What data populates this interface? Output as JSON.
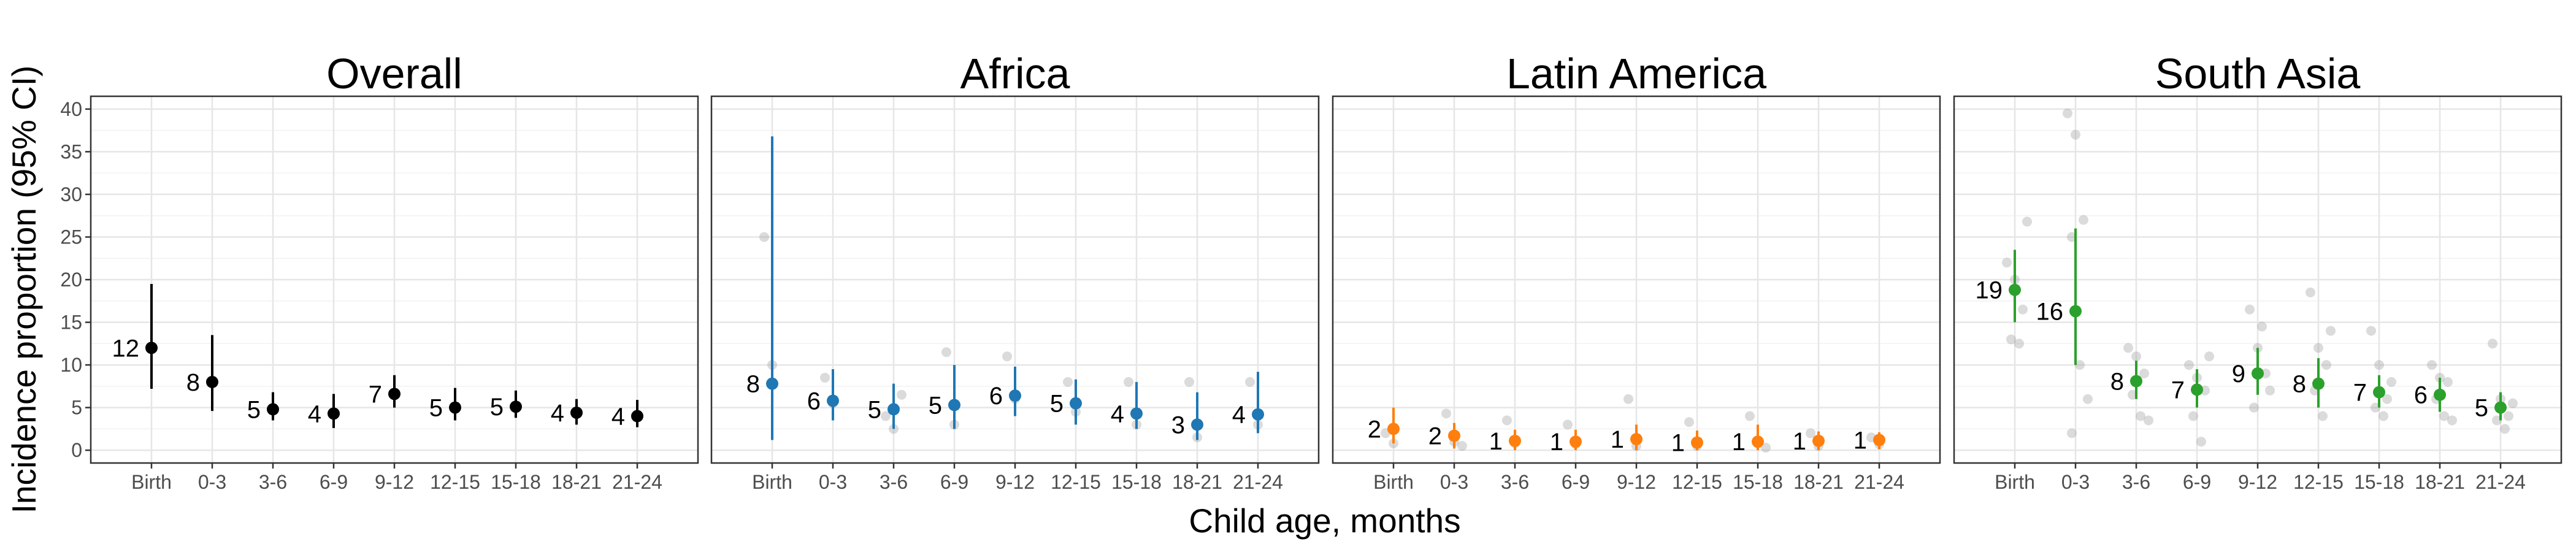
{
  "chart_data": {
    "type": "scatter",
    "xlabel": "Child age, months",
    "ylabel": "Incidence proportion (95% CI)",
    "ylim": [
      -1.5,
      41.5
    ],
    "yticks": [
      0,
      5,
      10,
      15,
      20,
      25,
      30,
      35,
      40
    ],
    "categories": [
      "Birth",
      "0-3",
      "3-6",
      "6-9",
      "9-12",
      "12-15",
      "15-18",
      "18-21",
      "21-24"
    ],
    "grid": true,
    "panels": [
      {
        "title": "Overall",
        "color": "#000000",
        "estimates": [
          12,
          8,
          5,
          4,
          7,
          5,
          5,
          4,
          4
        ],
        "y": [
          12.0,
          8.0,
          4.8,
          4.3,
          6.6,
          5.0,
          5.1,
          4.4,
          4.0
        ],
        "ci_low": [
          7.2,
          4.6,
          3.5,
          2.6,
          5.0,
          3.5,
          3.8,
          3.0,
          2.7
        ],
        "ci_high": [
          19.5,
          13.5,
          6.8,
          6.6,
          8.8,
          7.3,
          7.0,
          6.0,
          5.9
        ],
        "studies": []
      },
      {
        "title": "Africa",
        "color": "#1f77b4",
        "estimates": [
          8,
          6,
          5,
          5,
          6,
          5,
          4,
          3,
          4
        ],
        "y": [
          7.8,
          5.8,
          4.8,
          5.3,
          6.4,
          5.5,
          4.3,
          3.0,
          4.2
        ],
        "ci_low": [
          1.2,
          3.5,
          2.5,
          2.5,
          4.0,
          3.0,
          2.5,
          1.2,
          2.0
        ],
        "ci_high": [
          36.8,
          9.5,
          7.8,
          10.0,
          9.8,
          8.3,
          8.0,
          6.8,
          9.2
        ],
        "studies": [
          [
            25.0,
            10.0
          ],
          [
            8.5,
            5.5
          ],
          [
            4.0,
            2.5,
            6.5
          ],
          [
            11.5,
            3.0
          ],
          [
            11.0,
            6.0
          ],
          [
            8.0,
            4.5
          ],
          [
            8.0,
            3.0
          ],
          [
            8.0,
            1.5
          ],
          [
            8.0,
            3.0
          ]
        ]
      },
      {
        "title": "Latin America",
        "color": "#ff7f0e",
        "estimates": [
          2,
          2,
          1,
          1,
          1,
          1,
          1,
          1,
          1
        ],
        "y": [
          2.5,
          1.7,
          1.1,
          1.0,
          1.3,
          0.9,
          1.0,
          1.1,
          1.2
        ],
        "ci_low": [
          0.8,
          0.2,
          0.0,
          0.0,
          0.0,
          0.0,
          0.0,
          0.0,
          0.1
        ],
        "ci_high": [
          5.0,
          3.2,
          2.4,
          2.4,
          3.0,
          2.3,
          3.0,
          2.2,
          2.1
        ],
        "studies": [
          [
            2.0,
            0.8
          ],
          [
            4.3,
            1.0,
            0.5
          ],
          [
            3.5,
            0.8
          ],
          [
            3.0,
            0.7
          ],
          [
            6.0,
            0.5
          ],
          [
            3.3,
            0.5
          ],
          [
            4.0,
            0.8,
            0.3
          ],
          [
            2.0,
            0.5
          ],
          [
            1.5,
            0.7
          ]
        ]
      },
      {
        "title": "South Asia",
        "color": "#2ca02c",
        "estimates": [
          19,
          16,
          8,
          7,
          9,
          8,
          7,
          6,
          5
        ],
        "y": [
          18.8,
          16.3,
          8.1,
          7.1,
          9.0,
          7.8,
          6.8,
          6.5,
          5.0
        ],
        "ci_low": [
          15.0,
          10.0,
          6.0,
          5.0,
          6.5,
          5.0,
          5.0,
          4.5,
          3.5
        ],
        "ci_high": [
          23.5,
          26.0,
          10.5,
          9.5,
          12.0,
          10.8,
          8.8,
          8.5,
          6.8
        ],
        "studies": [
          [
            22.0,
            20.0,
            16.5,
            13.0,
            12.5,
            26.8
          ],
          [
            39.5,
            37.0,
            27.0,
            25.0,
            10.0,
            6.0,
            2.0
          ],
          [
            12.0,
            11.0,
            9.0,
            6.5,
            4.0,
            3.5
          ],
          [
            10.0,
            8.5,
            7.0,
            4.0,
            1.0,
            11.0
          ],
          [
            16.5,
            12.0,
            9.0,
            5.0,
            14.5,
            7.0
          ],
          [
            18.5,
            12.0,
            10.0,
            7.0,
            4.0,
            14.0
          ],
          [
            14.0,
            10.0,
            6.0,
            5.0,
            4.0,
            8.0
          ],
          [
            10.0,
            8.5,
            8.0,
            6.0,
            4.0,
            3.5
          ],
          [
            12.5,
            6.0,
            4.0,
            3.5,
            2.5,
            5.5
          ]
        ]
      }
    ]
  }
}
